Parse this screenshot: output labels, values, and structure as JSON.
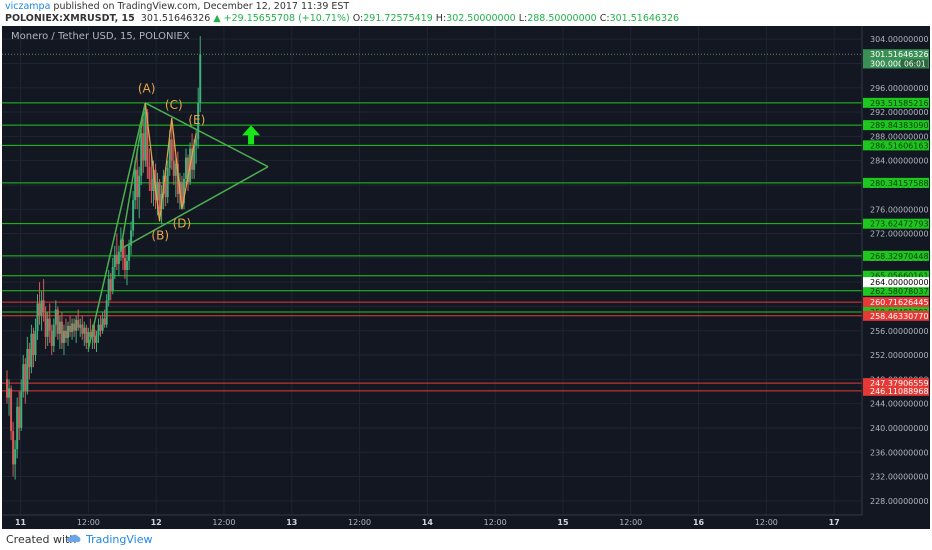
{
  "header": {
    "author": "viczampa",
    "published_text": " published on TradingView.com, December 12, 2017 11:39 EST",
    "symbol": "POLONIEX:XMRUSDT, 15",
    "last_price": "301.51646326",
    "change": "▲ +29.15655708 (+10.71%)",
    "o_label": "O:",
    "o_value": "291.72575419",
    "h_label": "H:",
    "h_value": "302.50000000",
    "l_label": "L:",
    "l_value": "288.50000000",
    "c_label": "C:",
    "c_value": "301.51646326"
  },
  "footer": {
    "created_with": "Created with",
    "brand": "TradingView"
  },
  "colors": {
    "background": "#131722",
    "up": "#3fb07a",
    "down": "#d65a5a",
    "support_resistance": "#1ec71e",
    "red_level": "#e53935",
    "pattern": "#4caf50",
    "wave_labels": "#e8a54a",
    "arrow": "#19e619"
  },
  "chart_data": {
    "type": "candlestick",
    "title": "Monero / Tether USD, 15, POLONIEX",
    "ylim": [
      226,
      306
    ],
    "y_ticks": [
      "304.00000000",
      "300.00000000",
      "296.00000000",
      "292.00000000",
      "288.00000000",
      "284.00000000",
      "280.00000000",
      "276.00000000",
      "272.00000000",
      "268.00000000",
      "264.00000000",
      "260.00000000",
      "256.00000000",
      "252.00000000",
      "248.00000000",
      "244.00000000",
      "240.00000000",
      "236.00000000",
      "232.00000000",
      "228.00000000"
    ],
    "x_ticks": [
      {
        "label": "11",
        "bold": true,
        "t": 2
      },
      {
        "label": "12:00",
        "t": 12
      },
      {
        "label": "12",
        "bold": true,
        "t": 22
      },
      {
        "label": "12:00",
        "t": 32
      },
      {
        "label": "13",
        "bold": true,
        "t": 42
      },
      {
        "label": "12:00",
        "t": 52
      },
      {
        "label": "14",
        "bold": true,
        "t": 62
      },
      {
        "label": "12:00",
        "t": 72
      },
      {
        "label": "15",
        "bold": true,
        "t": 82
      },
      {
        "label": "12:00",
        "t": 92
      },
      {
        "label": "16",
        "bold": true,
        "t": 102
      },
      {
        "label": "12:00",
        "t": 112
      },
      {
        "label": "17",
        "bold": true,
        "t": 122
      }
    ],
    "green_levels": [
      "293.51585216",
      "289.84383090",
      "286.51606163",
      "280.34157588",
      "273.62472793",
      "268.32970448",
      "265.05660161",
      "262.58078037",
      "259.08481301"
    ],
    "red_levels": [
      "260.71626445",
      "258.46330770",
      "247.37906559",
      "246.11088968"
    ],
    "extra_labels": [
      "264.00000000"
    ],
    "last_price_label": "301.51646326",
    "countdown": "06:01",
    "last_price_tag": "300.000",
    "ohlc": [
      {
        "t": 0.0,
        "o": 248.0,
        "h": 249.5,
        "l": 244.0,
        "c": 245.0
      },
      {
        "t": 0.3,
        "o": 245.0,
        "h": 248.0,
        "l": 242.0,
        "c": 246.5
      },
      {
        "t": 0.6,
        "o": 246.5,
        "h": 247.0,
        "l": 238.0,
        "c": 239.5
      },
      {
        "t": 0.9,
        "o": 239.5,
        "h": 241.0,
        "l": 232.0,
        "c": 234.0
      },
      {
        "t": 1.2,
        "o": 234.0,
        "h": 238.0,
        "l": 231.5,
        "c": 236.5
      },
      {
        "t": 1.5,
        "o": 236.5,
        "h": 245.0,
        "l": 235.0,
        "c": 243.5
      },
      {
        "t": 1.8,
        "o": 243.5,
        "h": 246.0,
        "l": 238.0,
        "c": 240.0
      },
      {
        "t": 2.1,
        "o": 240.0,
        "h": 248.0,
        "l": 239.5,
        "c": 246.0
      },
      {
        "t": 2.4,
        "o": 246.0,
        "h": 252.0,
        "l": 245.0,
        "c": 250.5
      },
      {
        "t": 2.7,
        "o": 250.5,
        "h": 251.5,
        "l": 244.0,
        "c": 246.0
      },
      {
        "t": 3.0,
        "o": 246.0,
        "h": 255.0,
        "l": 245.5,
        "c": 253.0
      },
      {
        "t": 3.3,
        "o": 253.0,
        "h": 254.0,
        "l": 248.0,
        "c": 250.0
      },
      {
        "t": 3.6,
        "o": 250.0,
        "h": 257.0,
        "l": 249.0,
        "c": 255.5
      },
      {
        "t": 3.9,
        "o": 255.5,
        "h": 256.5,
        "l": 250.0,
        "c": 252.0
      },
      {
        "t": 4.2,
        "o": 252.0,
        "h": 258.0,
        "l": 251.0,
        "c": 256.0
      },
      {
        "t": 4.5,
        "o": 256.0,
        "h": 262.0,
        "l": 254.5,
        "c": 260.5
      },
      {
        "t": 4.8,
        "o": 260.5,
        "h": 264.0,
        "l": 257.0,
        "c": 258.5
      },
      {
        "t": 5.1,
        "o": 258.5,
        "h": 262.5,
        "l": 256.0,
        "c": 261.0
      },
      {
        "t": 5.4,
        "o": 261.0,
        "h": 264.5,
        "l": 257.5,
        "c": 259.0
      },
      {
        "t": 5.7,
        "o": 259.0,
        "h": 260.0,
        "l": 253.0,
        "c": 255.0
      },
      {
        "t": 6.0,
        "o": 255.0,
        "h": 259.0,
        "l": 253.5,
        "c": 258.0
      },
      {
        "t": 6.3,
        "o": 258.0,
        "h": 260.5,
        "l": 254.0,
        "c": 256.0
      },
      {
        "t": 6.6,
        "o": 256.0,
        "h": 257.0,
        "l": 252.0,
        "c": 253.5
      },
      {
        "t": 6.9,
        "o": 253.5,
        "h": 258.0,
        "l": 252.5,
        "c": 257.0
      },
      {
        "t": 7.2,
        "o": 257.0,
        "h": 261.0,
        "l": 255.0,
        "c": 259.5
      },
      {
        "t": 7.5,
        "o": 259.5,
        "h": 260.0,
        "l": 254.5,
        "c": 255.5
      },
      {
        "t": 7.8,
        "o": 255.5,
        "h": 258.5,
        "l": 253.0,
        "c": 257.5
      },
      {
        "t": 8.1,
        "o": 257.5,
        "h": 259.0,
        "l": 253.0,
        "c": 254.0
      },
      {
        "t": 8.4,
        "o": 254.0,
        "h": 257.0,
        "l": 252.0,
        "c": 256.0
      },
      {
        "t": 8.7,
        "o": 256.0,
        "h": 258.0,
        "l": 254.0,
        "c": 254.8
      },
      {
        "t": 9.0,
        "o": 254.8,
        "h": 257.5,
        "l": 253.5,
        "c": 256.8
      },
      {
        "t": 9.3,
        "o": 256.8,
        "h": 258.5,
        "l": 255.0,
        "c": 255.8
      },
      {
        "t": 9.6,
        "o": 255.8,
        "h": 258.0,
        "l": 254.5,
        "c": 257.2
      },
      {
        "t": 9.9,
        "o": 257.2,
        "h": 258.0,
        "l": 255.0,
        "c": 256.0
      },
      {
        "t": 10.2,
        "o": 256.0,
        "h": 258.5,
        "l": 254.0,
        "c": 257.8
      },
      {
        "t": 10.5,
        "o": 257.8,
        "h": 259.5,
        "l": 256.0,
        "c": 256.5
      },
      {
        "t": 10.8,
        "o": 256.5,
        "h": 258.0,
        "l": 255.0,
        "c": 257.0
      },
      {
        "t": 11.1,
        "o": 257.0,
        "h": 258.5,
        "l": 254.5,
        "c": 255.5
      },
      {
        "t": 11.4,
        "o": 255.5,
        "h": 257.5,
        "l": 253.5,
        "c": 256.5
      },
      {
        "t": 11.7,
        "o": 256.5,
        "h": 257.0,
        "l": 253.0,
        "c": 254.0
      },
      {
        "t": 12.0,
        "o": 254.0,
        "h": 256.5,
        "l": 252.5,
        "c": 255.8
      },
      {
        "t": 12.3,
        "o": 255.8,
        "h": 258.0,
        "l": 254.5,
        "c": 255.0
      },
      {
        "t": 12.6,
        "o": 255.0,
        "h": 257.0,
        "l": 253.0,
        "c": 256.2
      },
      {
        "t": 12.9,
        "o": 256.2,
        "h": 257.5,
        "l": 253.0,
        "c": 254.0
      },
      {
        "t": 13.2,
        "o": 254.0,
        "h": 256.0,
        "l": 252.5,
        "c": 255.2
      },
      {
        "t": 13.5,
        "o": 255.2,
        "h": 258.0,
        "l": 254.0,
        "c": 257.0
      },
      {
        "t": 13.8,
        "o": 257.0,
        "h": 258.5,
        "l": 255.0,
        "c": 256.0
      },
      {
        "t": 14.1,
        "o": 256.0,
        "h": 259.0,
        "l": 255.5,
        "c": 258.0
      },
      {
        "t": 14.4,
        "o": 258.0,
        "h": 259.5,
        "l": 256.5,
        "c": 257.0
      },
      {
        "t": 14.7,
        "o": 257.0,
        "h": 262.0,
        "l": 256.5,
        "c": 261.0
      },
      {
        "t": 15.0,
        "o": 261.0,
        "h": 266.0,
        "l": 260.0,
        "c": 264.5
      },
      {
        "t": 15.3,
        "o": 264.5,
        "h": 265.5,
        "l": 261.0,
        "c": 262.5
      },
      {
        "t": 15.6,
        "o": 262.5,
        "h": 268.0,
        "l": 262.0,
        "c": 266.5
      },
      {
        "t": 15.9,
        "o": 266.5,
        "h": 270.0,
        "l": 264.5,
        "c": 268.5
      },
      {
        "t": 16.2,
        "o": 268.5,
        "h": 272.0,
        "l": 266.0,
        "c": 267.0
      },
      {
        "t": 16.5,
        "o": 267.0,
        "h": 270.0,
        "l": 265.0,
        "c": 269.0
      },
      {
        "t": 16.8,
        "o": 269.0,
        "h": 273.0,
        "l": 267.5,
        "c": 271.0
      },
      {
        "t": 17.1,
        "o": 271.0,
        "h": 272.0,
        "l": 266.0,
        "c": 268.0
      },
      {
        "t": 17.4,
        "o": 268.0,
        "h": 270.0,
        "l": 264.5,
        "c": 266.0
      },
      {
        "t": 17.7,
        "o": 266.0,
        "h": 268.5,
        "l": 263.5,
        "c": 267.5
      },
      {
        "t": 18.0,
        "o": 267.5,
        "h": 271.0,
        "l": 266.0,
        "c": 270.0
      },
      {
        "t": 18.3,
        "o": 270.0,
        "h": 274.0,
        "l": 268.5,
        "c": 272.5
      },
      {
        "t": 18.6,
        "o": 272.5,
        "h": 279.0,
        "l": 271.5,
        "c": 277.5
      },
      {
        "t": 18.9,
        "o": 277.5,
        "h": 284.0,
        "l": 276.0,
        "c": 282.5
      },
      {
        "t": 19.2,
        "o": 282.5,
        "h": 286.0,
        "l": 276.0,
        "c": 278.0
      },
      {
        "t": 19.5,
        "o": 278.0,
        "h": 283.0,
        "l": 274.5,
        "c": 281.5
      },
      {
        "t": 19.8,
        "o": 281.5,
        "h": 290.0,
        "l": 280.0,
        "c": 288.5
      },
      {
        "t": 20.1,
        "o": 288.5,
        "h": 291.0,
        "l": 282.0,
        "c": 284.0
      },
      {
        "t": 20.4,
        "o": 284.0,
        "h": 293.5,
        "l": 283.0,
        "c": 292.0
      },
      {
        "t": 20.7,
        "o": 292.0,
        "h": 292.5,
        "l": 281.0,
        "c": 283.0
      },
      {
        "t": 21.0,
        "o": 283.0,
        "h": 286.0,
        "l": 279.0,
        "c": 281.0
      },
      {
        "t": 21.3,
        "o": 281.0,
        "h": 285.0,
        "l": 277.0,
        "c": 279.0
      },
      {
        "t": 21.6,
        "o": 279.0,
        "h": 284.0,
        "l": 276.5,
        "c": 282.5
      },
      {
        "t": 21.9,
        "o": 282.5,
        "h": 283.5,
        "l": 276.0,
        "c": 277.5
      },
      {
        "t": 22.2,
        "o": 277.5,
        "h": 282.0,
        "l": 275.0,
        "c": 280.5
      },
      {
        "t": 22.5,
        "o": 280.5,
        "h": 281.0,
        "l": 274.0,
        "c": 276.0
      },
      {
        "t": 22.8,
        "o": 276.0,
        "h": 280.0,
        "l": 273.5,
        "c": 278.5
      },
      {
        "t": 23.1,
        "o": 278.5,
        "h": 282.5,
        "l": 276.0,
        "c": 281.5
      },
      {
        "t": 23.4,
        "o": 281.5,
        "h": 283.0,
        "l": 276.5,
        "c": 278.0
      },
      {
        "t": 23.7,
        "o": 278.0,
        "h": 284.0,
        "l": 277.0,
        "c": 282.8
      },
      {
        "t": 24.0,
        "o": 282.8,
        "h": 289.0,
        "l": 281.5,
        "c": 287.5
      },
      {
        "t": 24.3,
        "o": 287.5,
        "h": 291.0,
        "l": 282.5,
        "c": 284.0
      },
      {
        "t": 24.6,
        "o": 284.0,
        "h": 288.5,
        "l": 280.0,
        "c": 281.5
      },
      {
        "t": 24.9,
        "o": 281.5,
        "h": 285.0,
        "l": 278.0,
        "c": 283.5
      },
      {
        "t": 25.2,
        "o": 283.5,
        "h": 285.5,
        "l": 277.0,
        "c": 278.5
      },
      {
        "t": 25.5,
        "o": 278.5,
        "h": 282.0,
        "l": 276.0,
        "c": 280.5
      },
      {
        "t": 25.8,
        "o": 280.5,
        "h": 281.5,
        "l": 276.0,
        "c": 277.0
      },
      {
        "t": 26.1,
        "o": 277.0,
        "h": 282.0,
        "l": 276.0,
        "c": 281.0
      },
      {
        "t": 26.4,
        "o": 281.0,
        "h": 286.0,
        "l": 279.5,
        "c": 284.5
      },
      {
        "t": 26.7,
        "o": 284.5,
        "h": 285.0,
        "l": 279.0,
        "c": 280.5
      },
      {
        "t": 27.0,
        "o": 280.5,
        "h": 287.0,
        "l": 280.0,
        "c": 286.0
      },
      {
        "t": 27.3,
        "o": 286.0,
        "h": 288.5,
        "l": 281.0,
        "c": 282.5
      },
      {
        "t": 27.6,
        "o": 282.5,
        "h": 287.5,
        "l": 281.0,
        "c": 286.5
      },
      {
        "t": 27.9,
        "o": 286.5,
        "h": 289.0,
        "l": 283.5,
        "c": 287.5
      },
      {
        "t": 28.2,
        "o": 287.5,
        "h": 296.0,
        "l": 286.0,
        "c": 293.5
      },
      {
        "t": 28.5,
        "o": 293.5,
        "h": 304.5,
        "l": 292.0,
        "c": 301.5
      }
    ],
    "pattern": {
      "triangle_left": [
        [
          16.8,
          269.5
        ],
        [
          20.4,
          293.5
        ]
      ],
      "triangle_upper": [
        [
          20.4,
          293.5
        ],
        [
          38.5,
          283.0
        ]
      ],
      "triangle_lower": [
        [
          16.8,
          269.5
        ],
        [
          38.5,
          283.0
        ]
      ],
      "impulse_line": [
        [
          12.0,
          253.0
        ],
        [
          20.4,
          293.5
        ]
      ],
      "wave_path": [
        [
          20.4,
          293.5
        ],
        [
          22.5,
          274.0
        ],
        [
          24.3,
          291.0
        ],
        [
          25.8,
          276.0
        ],
        [
          27.9,
          288.5
        ]
      ],
      "wave_labels": [
        {
          "text": "(A)",
          "t": 20.6,
          "p": 295.2
        },
        {
          "text": "(B)",
          "t": 22.6,
          "p": 271.0
        },
        {
          "text": "(C)",
          "t": 24.6,
          "p": 292.5
        },
        {
          "text": "(D)",
          "t": 25.8,
          "p": 273.0
        },
        {
          "text": "(E)",
          "t": 28.0,
          "p": 290.0
        }
      ],
      "arrow": {
        "t": 36.0,
        "p": 288.5
      }
    }
  }
}
